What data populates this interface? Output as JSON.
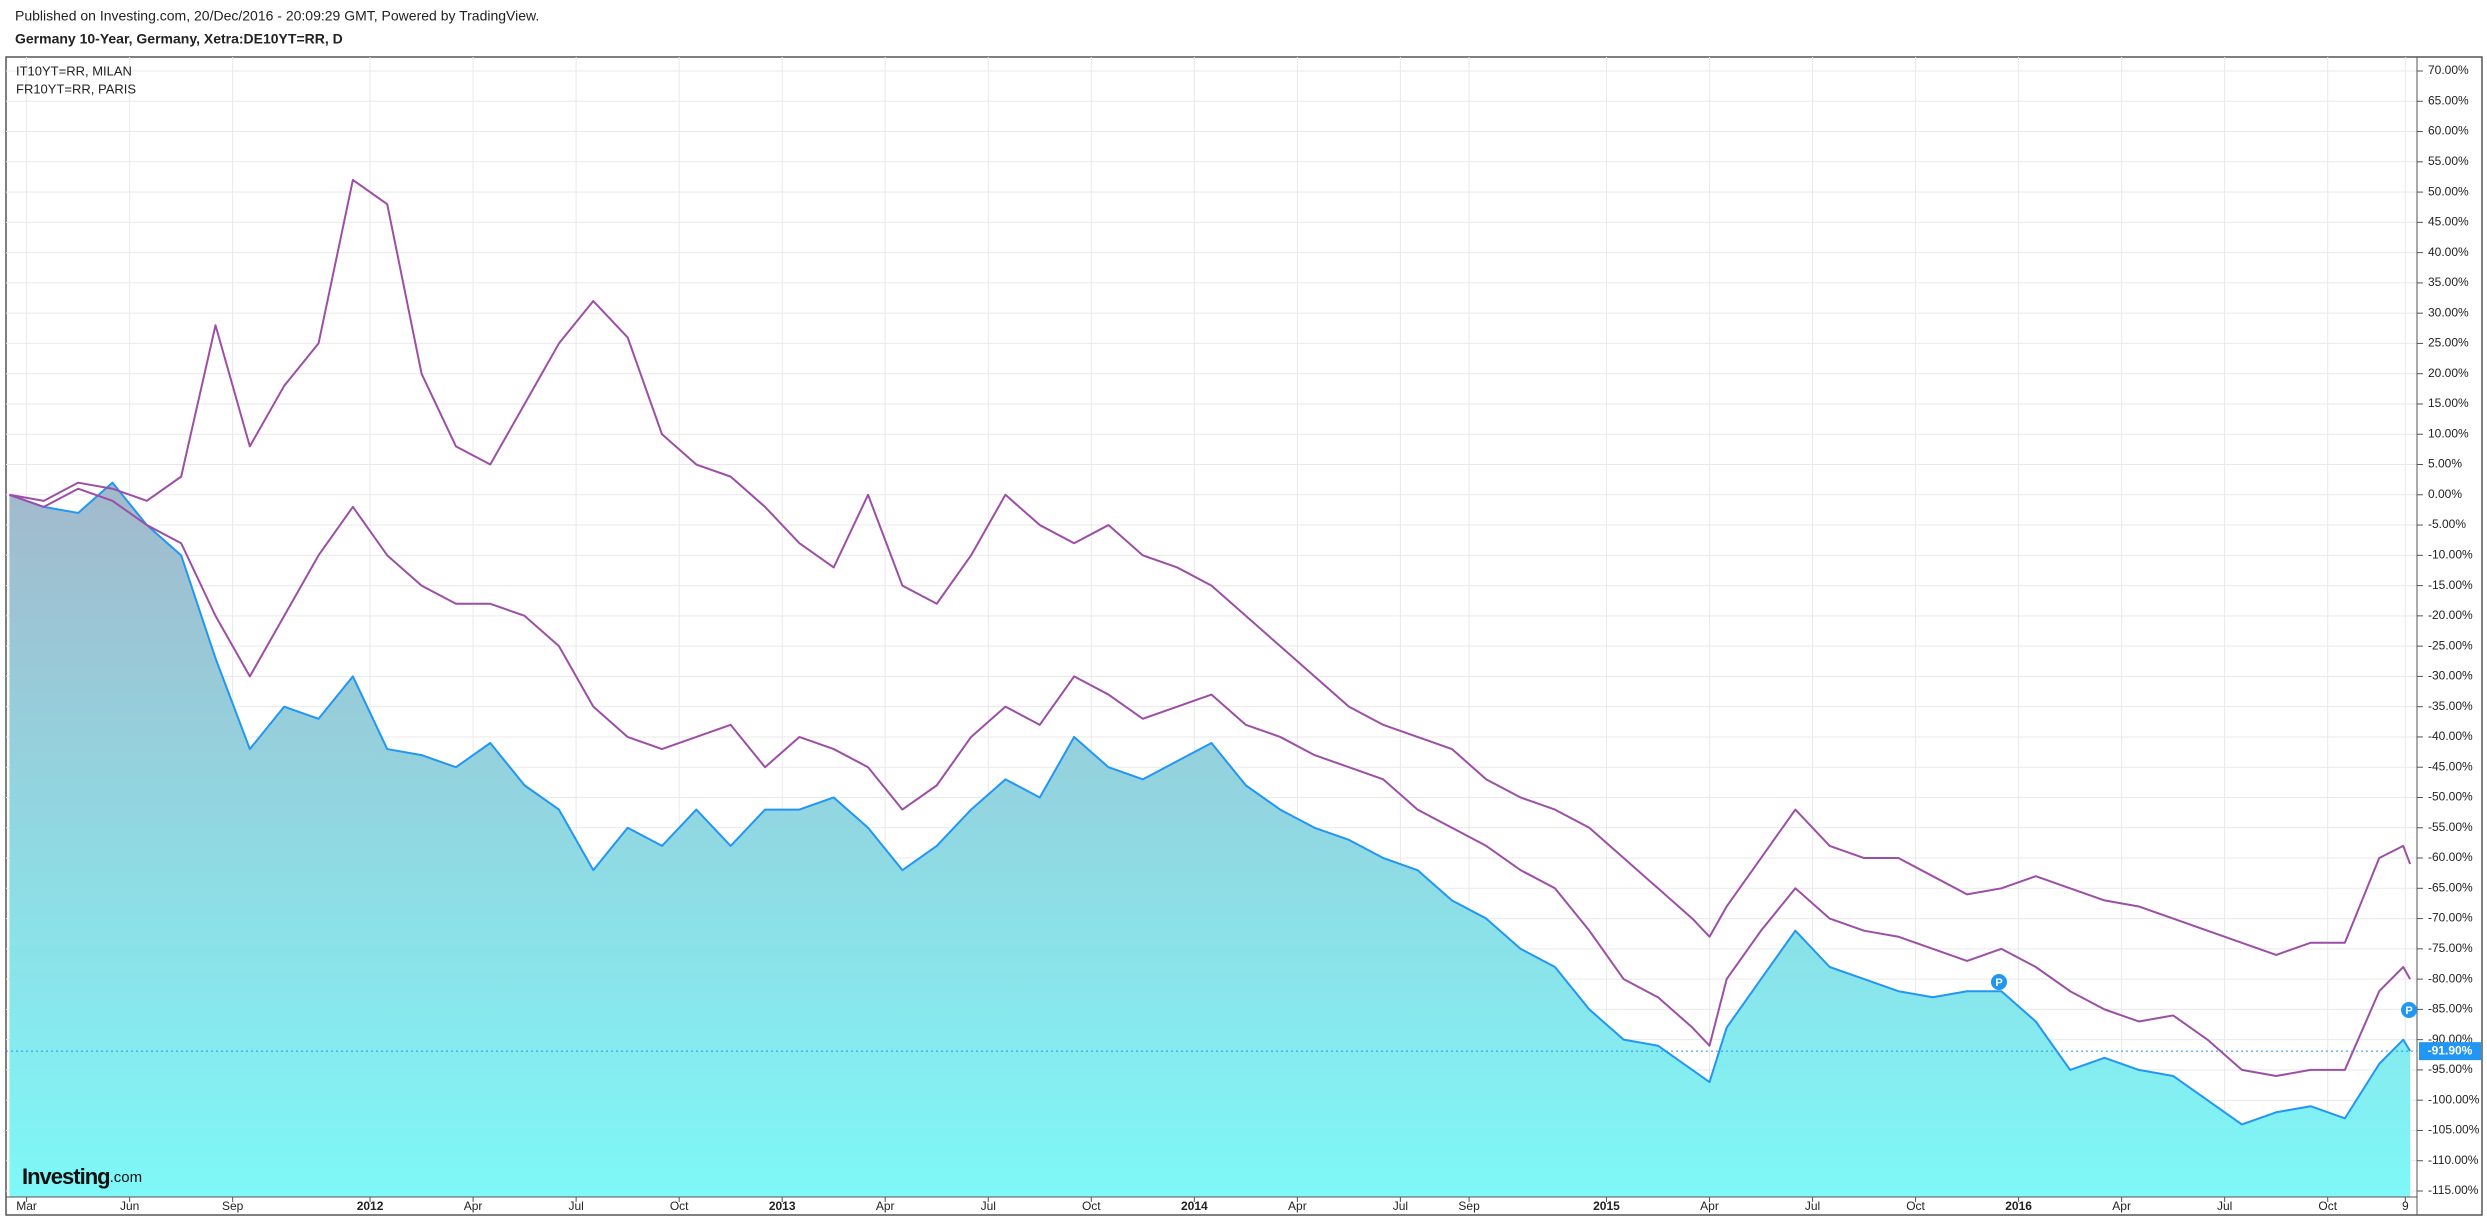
{
  "header": {
    "published": "Published on Investing.com, 20/Dec/2016 - 20:09:29 GMT, Powered by TradingView."
  },
  "chart_data": {
    "type": "line",
    "title": "Germany 10-Year, Germany, Xetra:DE10YT=RR, D",
    "legend": "top-left",
    "grid": true,
    "logo": "Investing",
    "logo_suffix": ".com",
    "event_marker": "P",
    "xlim": [
      1.4,
      71.6
    ],
    "xticks": [
      {
        "value": 2,
        "label": "Mar"
      },
      {
        "value": 5,
        "label": "Jun"
      },
      {
        "value": 8,
        "label": "Sep"
      },
      {
        "value": 12,
        "label": "2012"
      },
      {
        "value": 15,
        "label": "Apr"
      },
      {
        "value": 18,
        "label": "Jul"
      },
      {
        "value": 21,
        "label": "Oct"
      },
      {
        "value": 24,
        "label": "2013"
      },
      {
        "value": 27,
        "label": "Apr"
      },
      {
        "value": 30,
        "label": "Jul"
      },
      {
        "value": 33,
        "label": "Oct"
      },
      {
        "value": 36,
        "label": "2014"
      },
      {
        "value": 39,
        "label": "Apr"
      },
      {
        "value": 42,
        "label": "Jul"
      },
      {
        "value": 44,
        "label": "Sep"
      },
      {
        "value": 48,
        "label": "2015"
      },
      {
        "value": 51,
        "label": "Apr"
      },
      {
        "value": 54,
        "label": "Jul"
      },
      {
        "value": 57,
        "label": "Oct"
      },
      {
        "value": 60,
        "label": "2016"
      },
      {
        "value": 63,
        "label": "Apr"
      },
      {
        "value": 66,
        "label": "Jul"
      },
      {
        "value": 69,
        "label": "Oct"
      },
      {
        "value": 71.26,
        "label": "9"
      }
    ],
    "ylim": [
      -115,
      70
    ],
    "yticks": [
      {
        "value": 70,
        "label": "70.00%"
      },
      {
        "value": 65,
        "label": "65.00%"
      },
      {
        "value": 60,
        "label": "60.00%"
      },
      {
        "value": 55,
        "label": "55.00%"
      },
      {
        "value": 50,
        "label": "50.00%"
      },
      {
        "value": 45,
        "label": "45.00%"
      },
      {
        "value": 40,
        "label": "40.00%"
      },
      {
        "value": 35,
        "label": "35.00%"
      },
      {
        "value": 30,
        "label": "30.00%"
      },
      {
        "value": 25,
        "label": "25.00%"
      },
      {
        "value": 20,
        "label": "20.00%"
      },
      {
        "value": 15,
        "label": "15.00%"
      },
      {
        "value": 10,
        "label": "10.00%"
      },
      {
        "value": 5,
        "label": "5.00%"
      },
      {
        "value": 0,
        "label": "0.00%"
      },
      {
        "value": -5,
        "label": "-5.00%"
      },
      {
        "value": -10,
        "label": "-10.00%"
      },
      {
        "value": -15,
        "label": "-15.00%"
      },
      {
        "value": -20,
        "label": "-20.00%"
      },
      {
        "value": -25,
        "label": "-25.00%"
      },
      {
        "value": -30,
        "label": "-30.00%"
      },
      {
        "value": -35,
        "label": "-35.00%"
      },
      {
        "value": -40,
        "label": "-40.00%"
      },
      {
        "value": -45,
        "label": "-45.00%"
      },
      {
        "value": -50,
        "label": "-50.00%"
      },
      {
        "value": -55,
        "label": "-55.00%"
      },
      {
        "value": -60,
        "label": "-60.00%"
      },
      {
        "value": -65,
        "label": "-65.00%"
      },
      {
        "value": -70,
        "label": "-70.00%"
      },
      {
        "value": -75,
        "label": "-75.00%"
      },
      {
        "value": -80,
        "label": "-80.00%"
      },
      {
        "value": -85,
        "label": "-85.00%"
      },
      {
        "value": -90,
        "label": "-90.00%"
      },
      {
        "value": -95,
        "label": "-95.00%"
      },
      {
        "value": -100,
        "label": "-100.00%"
      },
      {
        "value": -105,
        "label": "-105.00%"
      },
      {
        "value": -110,
        "label": "-110.00%"
      },
      {
        "value": -115,
        "label": "-115.00%"
      }
    ],
    "x": [
      1.5,
      2.5,
      3.5,
      4.5,
      5.5,
      6.5,
      7.5,
      8.5,
      9.5,
      10.5,
      11.5,
      12.5,
      13.5,
      14.5,
      15.5,
      16.5,
      17.5,
      18.5,
      19.5,
      20.5,
      21.5,
      22.5,
      23.5,
      24.5,
      25.5,
      26.5,
      27.5,
      28.5,
      29.5,
      30.5,
      31.5,
      32.5,
      33.5,
      34.5,
      35.5,
      36.5,
      37.5,
      38.5,
      39.5,
      40.5,
      41.5,
      42.5,
      43.5,
      44.5,
      45.5,
      46.5,
      47.5,
      48.5,
      49.5,
      50.5,
      51.0,
      51.5,
      52.5,
      53.5,
      54.5,
      55.5,
      56.5,
      57.5,
      58.5,
      59.5,
      60.5,
      61.5,
      62.5,
      63.5,
      64.5,
      65.5,
      66.5,
      67.5,
      68.5,
      69.5,
      70.5,
      71.2,
      71.4
    ],
    "series": [
      {
        "color": "#2196f3",
        "area": true,
        "fill_colors": [
          "#a2b9cc",
          "#7ef8f8"
        ],
        "values": [
          0,
          -2,
          -3,
          2,
          -5,
          -10,
          -27,
          -42,
          -35,
          -37,
          -30,
          -42,
          -43,
          -45,
          -41,
          -48,
          -52,
          -62,
          -55,
          -58,
          -52,
          -58,
          -52,
          -52,
          -50,
          -55,
          -62,
          -58,
          -52,
          -47,
          -50,
          -40,
          -45,
          -47,
          -44,
          -41,
          -48,
          -52,
          -55,
          -57,
          -60,
          -62,
          -67,
          -70,
          -75,
          -78,
          -85,
          -90,
          -91,
          -95,
          -97,
          -88,
          -80,
          -72,
          -78,
          -80,
          -82,
          -83,
          -82,
          -82,
          -87,
          -95,
          -93,
          -95,
          -96,
          -100,
          -104,
          -102,
          -101,
          -103,
          -94,
          -90,
          -91.9
        ],
        "value_labels": [
          null,
          null,
          null,
          null,
          null,
          null,
          null,
          null,
          null,
          null,
          null,
          null,
          null,
          null,
          null,
          null,
          null,
          null,
          null,
          null,
          null,
          null,
          null,
          null,
          null,
          null,
          null,
          null,
          null,
          null,
          null,
          null,
          null,
          null,
          null,
          null,
          null,
          null,
          null,
          null,
          null,
          null,
          null,
          null,
          null,
          null,
          null,
          null,
          null,
          null,
          null,
          null,
          null,
          null,
          null,
          null,
          null,
          null,
          null,
          null,
          null,
          null,
          null,
          null,
          null,
          null,
          null,
          null,
          null,
          null,
          null,
          null,
          "-91.90%"
        ]
      },
      {
        "name": "IT10YT=RR, MILAN",
        "color": "#9c4fa5",
        "values": [
          0,
          -1,
          2,
          1,
          -1,
          3,
          28,
          8,
          18,
          25,
          52,
          48,
          20,
          8,
          5,
          15,
          25,
          32,
          26,
          10,
          5,
          3,
          -2,
          -8,
          -12,
          0,
          -15,
          -18,
          -10,
          0,
          -5,
          -8,
          -5,
          -10,
          -12,
          -15,
          -20,
          -25,
          -30,
          -35,
          -38,
          -40,
          -42,
          -47,
          -50,
          -52,
          -55,
          -60,
          -65,
          -70,
          -73,
          -68,
          -60,
          -52,
          -58,
          -60,
          -60,
          -63,
          -66,
          -65,
          -63,
          -65,
          -67,
          -68,
          -70,
          -72,
          -74,
          -76,
          -74,
          -74,
          -60,
          -58,
          -61
        ]
      },
      {
        "name": "FR10YT=RR, PARIS",
        "color": "#9c4fa5",
        "values": [
          0,
          -2,
          1,
          -1,
          -5,
          -8,
          -20,
          -30,
          -20,
          -10,
          -2,
          -10,
          -15,
          -18,
          -18,
          -20,
          -25,
          -35,
          -40,
          -42,
          -40,
          -38,
          -45,
          -40,
          -42,
          -45,
          -52,
          -48,
          -40,
          -35,
          -38,
          -30,
          -33,
          -37,
          -35,
          -33,
          -38,
          -40,
          -43,
          -45,
          -47,
          -52,
          -55,
          -58,
          -62,
          -65,
          -72,
          -80,
          -83,
          -88,
          -91,
          -80,
          -72,
          -65,
          -70,
          -72,
          -73,
          -75,
          -77,
          -75,
          -78,
          -82,
          -85,
          -87,
          -86,
          -90,
          -95,
          -96,
          -95,
          -95,
          -82,
          -78,
          -80
        ]
      }
    ]
  }
}
